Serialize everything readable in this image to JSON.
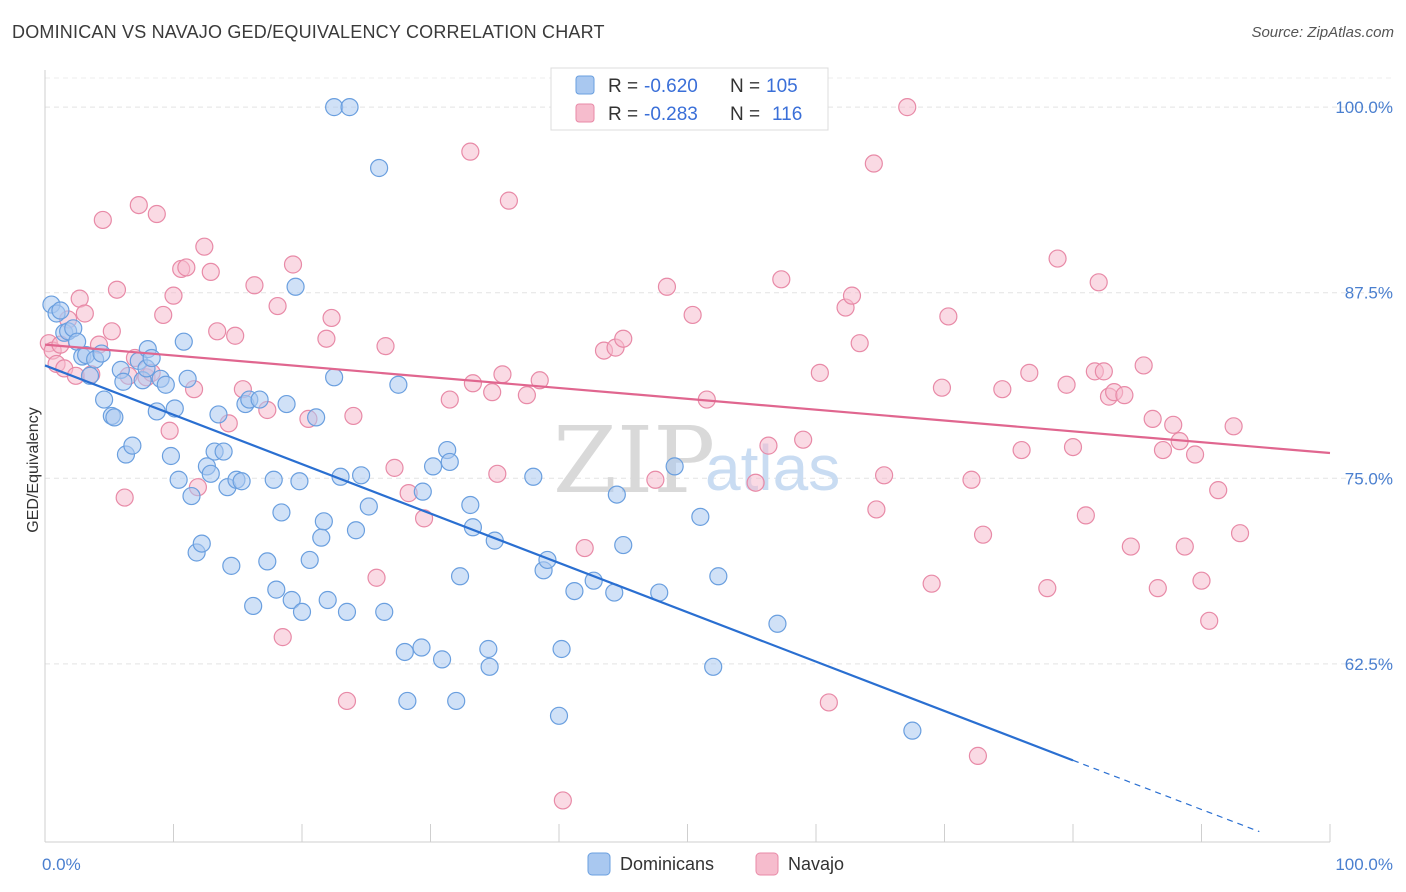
{
  "header": {
    "title": "DOMINICAN VS NAVAJO GED/EQUIVALENCY CORRELATION CHART",
    "source": "Source: ZipAtlas.com"
  },
  "watermark": {
    "part1": "ZIP",
    "part2": "atlas"
  },
  "legend": {
    "rows": [
      {
        "r_label": "R =",
        "r_value": "-0.620",
        "n_label": "N =",
        "n_value": "105"
      },
      {
        "r_label": "R =",
        "r_value": "-0.283",
        "n_label": "N =",
        "n_value": "116"
      }
    ]
  },
  "bottom_legend": {
    "series1": "Dominicans",
    "series2": "Navajo"
  },
  "colors": {
    "dominicans_fill": "#a9c8f0",
    "dominicans_stroke": "#6a9fdf",
    "dominicans_line": "#2a6fd1",
    "navajo_fill": "#f6bccd",
    "navajo_stroke": "#e88aa7",
    "navajo_line": "#e0668f",
    "tick_label": "#4a7fcf"
  },
  "chart_data": {
    "type": "scatter",
    "title": "DOMINICAN VS NAVAJO GED/EQUIVALENCY CORRELATION CHART",
    "xlabel": "",
    "ylabel": "GED/Equivalency",
    "xlim": [
      0,
      100
    ],
    "ylim": [
      50.5,
      102.5
    ],
    "x_tick_labels": [
      "0.0%",
      "100.0%"
    ],
    "y_ticks": [
      100.0,
      87.5,
      75.0,
      62.5
    ],
    "y_tick_labels": [
      "100.0%",
      "87.5%",
      "75.0%",
      "62.5%"
    ],
    "grid": true,
    "legend_position": "top-center",
    "series": [
      {
        "name": "Dominicans",
        "R": -0.62,
        "N": 105,
        "trend": {
          "x0": 0,
          "y0": 82.6,
          "x1": 80,
          "y1": 56.0,
          "dashed_to": [
            94.5,
            51.2
          ]
        },
        "points": [
          [
            0.5,
            86.7
          ],
          [
            0.9,
            86.1
          ],
          [
            1.2,
            86.3
          ],
          [
            1.5,
            84.8
          ],
          [
            1.8,
            84.9
          ],
          [
            2.2,
            85.1
          ],
          [
            2.5,
            84.2
          ],
          [
            2.9,
            83.2
          ],
          [
            3.2,
            83.3
          ],
          [
            3.9,
            83.0
          ],
          [
            4.4,
            83.4
          ],
          [
            3.5,
            81.9
          ],
          [
            4.6,
            80.3
          ],
          [
            5.2,
            79.2
          ],
          [
            5.4,
            79.1
          ],
          [
            5.9,
            82.3
          ],
          [
            6.1,
            81.5
          ],
          [
            6.3,
            76.6
          ],
          [
            6.8,
            77.2
          ],
          [
            7.3,
            82.9
          ],
          [
            7.6,
            81.6
          ],
          [
            7.9,
            82.4
          ],
          [
            8.0,
            83.7
          ],
          [
            8.3,
            83.1
          ],
          [
            8.7,
            79.5
          ],
          [
            9.0,
            81.7
          ],
          [
            9.4,
            81.3
          ],
          [
            9.8,
            76.5
          ],
          [
            10.1,
            79.7
          ],
          [
            10.4,
            74.9
          ],
          [
            10.8,
            84.2
          ],
          [
            11.1,
            81.7
          ],
          [
            11.4,
            73.8
          ],
          [
            11.8,
            70.0
          ],
          [
            12.2,
            70.6
          ],
          [
            12.6,
            75.8
          ],
          [
            12.9,
            75.3
          ],
          [
            13.2,
            76.8
          ],
          [
            13.5,
            79.3
          ],
          [
            13.9,
            76.8
          ],
          [
            14.2,
            74.4
          ],
          [
            14.5,
            69.1
          ],
          [
            14.9,
            74.9
          ],
          [
            15.3,
            74.8
          ],
          [
            15.6,
            80.0
          ],
          [
            15.9,
            80.3
          ],
          [
            16.2,
            66.4
          ],
          [
            16.7,
            80.3
          ],
          [
            17.3,
            69.4
          ],
          [
            17.8,
            74.9
          ],
          [
            18.0,
            67.5
          ],
          [
            18.4,
            72.7
          ],
          [
            18.8,
            80.0
          ],
          [
            19.2,
            66.8
          ],
          [
            19.5,
            87.9
          ],
          [
            19.8,
            74.8
          ],
          [
            20.0,
            66.0
          ],
          [
            20.6,
            69.5
          ],
          [
            21.1,
            79.1
          ],
          [
            21.5,
            71.0
          ],
          [
            21.7,
            72.1
          ],
          [
            22.0,
            66.8
          ],
          [
            22.5,
            81.8
          ],
          [
            22.5,
            100.0
          ],
          [
            23.0,
            75.1
          ],
          [
            23.5,
            66.0
          ],
          [
            23.7,
            100.0
          ],
          [
            24.2,
            71.5
          ],
          [
            24.6,
            75.2
          ],
          [
            25.2,
            73.1
          ],
          [
            26.0,
            95.9
          ],
          [
            26.4,
            66.0
          ],
          [
            27.5,
            81.3
          ],
          [
            28.0,
            63.3
          ],
          [
            28.2,
            60.0
          ],
          [
            29.3,
            63.6
          ],
          [
            29.4,
            74.1
          ],
          [
            30.2,
            75.8
          ],
          [
            30.9,
            62.8
          ],
          [
            31.3,
            76.9
          ],
          [
            31.5,
            76.1
          ],
          [
            32.0,
            60.0
          ],
          [
            32.3,
            68.4
          ],
          [
            33.1,
            73.2
          ],
          [
            33.3,
            71.7
          ],
          [
            34.5,
            63.5
          ],
          [
            34.6,
            62.3
          ],
          [
            35.0,
            70.8
          ],
          [
            38.0,
            75.1
          ],
          [
            38.8,
            68.8
          ],
          [
            39.1,
            69.5
          ],
          [
            40.0,
            59.0
          ],
          [
            40.2,
            63.5
          ],
          [
            41.2,
            67.4
          ],
          [
            42.7,
            68.1
          ],
          [
            44.3,
            67.3
          ],
          [
            44.5,
            73.9
          ],
          [
            45.0,
            70.5
          ],
          [
            47.8,
            67.3
          ],
          [
            49.0,
            75.8
          ],
          [
            51.0,
            72.4
          ],
          [
            52.0,
            62.3
          ],
          [
            52.4,
            68.4
          ],
          [
            57.0,
            65.2
          ],
          [
            67.5,
            58.0
          ]
        ]
      },
      {
        "name": "Navajo",
        "R": -0.283,
        "N": 116,
        "trend": {
          "x0": 0,
          "y0": 84.0,
          "x1": 100,
          "y1": 76.7
        },
        "points": [
          [
            0.3,
            84.1
          ],
          [
            0.6,
            83.6
          ],
          [
            0.9,
            82.7
          ],
          [
            1.2,
            84.0
          ],
          [
            1.5,
            82.4
          ],
          [
            1.8,
            85.7
          ],
          [
            2.4,
            81.9
          ],
          [
            2.7,
            87.1
          ],
          [
            3.1,
            86.1
          ],
          [
            3.6,
            82.0
          ],
          [
            4.2,
            84.0
          ],
          [
            4.5,
            92.4
          ],
          [
            5.2,
            84.9
          ],
          [
            5.6,
            87.7
          ],
          [
            6.2,
            73.7
          ],
          [
            6.5,
            81.9
          ],
          [
            7.0,
            83.1
          ],
          [
            7.3,
            93.4
          ],
          [
            7.9,
            81.8
          ],
          [
            8.3,
            82.1
          ],
          [
            8.7,
            92.8
          ],
          [
            9.2,
            86.0
          ],
          [
            9.7,
            78.2
          ],
          [
            10.0,
            87.3
          ],
          [
            10.6,
            89.1
          ],
          [
            11.0,
            89.2
          ],
          [
            11.6,
            81.0
          ],
          [
            11.9,
            74.4
          ],
          [
            12.4,
            90.6
          ],
          [
            12.9,
            88.9
          ],
          [
            13.4,
            84.9
          ],
          [
            14.3,
            78.7
          ],
          [
            14.8,
            84.6
          ],
          [
            15.4,
            81.0
          ],
          [
            16.3,
            88.0
          ],
          [
            17.3,
            79.6
          ],
          [
            18.1,
            86.6
          ],
          [
            18.5,
            64.3
          ],
          [
            19.3,
            89.4
          ],
          [
            20.5,
            79.0
          ],
          [
            21.9,
            84.4
          ],
          [
            22.3,
            85.8
          ],
          [
            23.5,
            60.0
          ],
          [
            24.0,
            79.2
          ],
          [
            25.8,
            68.3
          ],
          [
            26.5,
            83.9
          ],
          [
            27.2,
            75.7
          ],
          [
            28.3,
            74.0
          ],
          [
            29.5,
            72.3
          ],
          [
            31.5,
            80.3
          ],
          [
            33.1,
            97.0
          ],
          [
            33.3,
            81.4
          ],
          [
            34.8,
            80.8
          ],
          [
            35.2,
            75.3
          ],
          [
            35.6,
            82.0
          ],
          [
            36.1,
            93.7
          ],
          [
            37.5,
            80.6
          ],
          [
            38.5,
            81.6
          ],
          [
            40.3,
            53.3
          ],
          [
            42.0,
            70.3
          ],
          [
            43.5,
            83.6
          ],
          [
            44.4,
            83.8
          ],
          [
            45.0,
            84.4
          ],
          [
            47.5,
            74.9
          ],
          [
            48.4,
            87.9
          ],
          [
            50.4,
            86.0
          ],
          [
            51.5,
            80.3
          ],
          [
            53.5,
            100.0
          ],
          [
            54.3,
            99.7
          ],
          [
            55.3,
            74.7
          ],
          [
            56.3,
            77.2
          ],
          [
            57.3,
            88.4
          ],
          [
            59.0,
            77.6
          ],
          [
            60.3,
            82.1
          ],
          [
            61.0,
            59.9
          ],
          [
            62.3,
            86.5
          ],
          [
            62.8,
            87.3
          ],
          [
            63.4,
            84.1
          ],
          [
            64.7,
            72.9
          ],
          [
            65.3,
            75.2
          ],
          [
            67.1,
            100.0
          ],
          [
            69.0,
            67.9
          ],
          [
            69.8,
            81.1
          ],
          [
            70.3,
            85.9
          ],
          [
            72.1,
            74.9
          ],
          [
            72.6,
            56.3
          ],
          [
            73.0,
            71.2
          ],
          [
            74.5,
            81.0
          ],
          [
            76.0,
            76.9
          ],
          [
            76.6,
            82.1
          ],
          [
            78.0,
            67.6
          ],
          [
            78.8,
            89.8
          ],
          [
            79.5,
            81.3
          ],
          [
            80.0,
            77.1
          ],
          [
            81.0,
            72.5
          ],
          [
            81.7,
            82.2
          ],
          [
            82.0,
            88.2
          ],
          [
            82.4,
            82.2
          ],
          [
            82.8,
            80.5
          ],
          [
            83.2,
            80.8
          ],
          [
            84.0,
            80.6
          ],
          [
            84.5,
            70.4
          ],
          [
            85.5,
            82.6
          ],
          [
            86.2,
            79.0
          ],
          [
            86.6,
            67.6
          ],
          [
            87.0,
            76.9
          ],
          [
            87.8,
            78.6
          ],
          [
            88.3,
            77.5
          ],
          [
            88.7,
            70.4
          ],
          [
            89.5,
            76.6
          ],
          [
            90.0,
            68.1
          ],
          [
            90.6,
            65.4
          ],
          [
            91.3,
            74.2
          ],
          [
            92.5,
            78.5
          ],
          [
            93.0,
            71.3
          ],
          [
            64.5,
            96.2
          ]
        ]
      }
    ]
  }
}
